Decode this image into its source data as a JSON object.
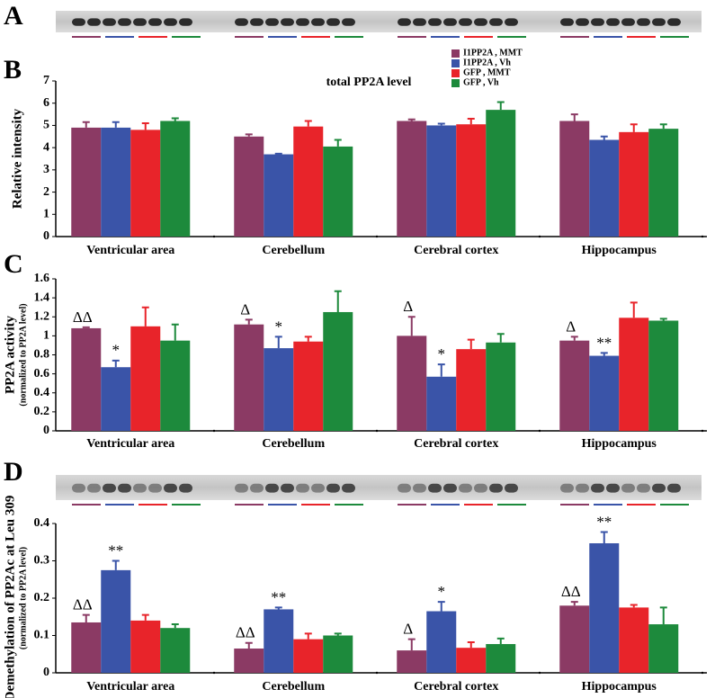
{
  "figure": {
    "panel_labels": [
      "A",
      "B",
      "C",
      "D"
    ]
  },
  "chart_data": [
    {
      "type": "bar",
      "title": "total PP2A level",
      "ylabel": "Relative intensity",
      "categories": [
        "Ventricular area",
        "Cerebellum",
        "Cerebral cortex",
        "Hippocampus"
      ],
      "ylim": [
        0,
        7
      ],
      "yticks": [
        0,
        1,
        2,
        3,
        4,
        5,
        6,
        7
      ],
      "series": [
        {
          "name": "I1PP2A , MMT",
          "color": "#8b3a64",
          "values": [
            4.9,
            4.5,
            5.2,
            5.2
          ],
          "errors": [
            0.25,
            0.1,
            0.07,
            0.3
          ]
        },
        {
          "name": "I1PP2A , Vh",
          "color": "#3a54a8",
          "values": [
            4.9,
            3.7,
            5.0,
            4.35
          ],
          "errors": [
            0.25,
            0.03,
            0.08,
            0.15
          ]
        },
        {
          "name": "GFP , MMT",
          "color": "#e8242a",
          "values": [
            4.8,
            4.95,
            5.05,
            4.7
          ],
          "errors": [
            0.3,
            0.25,
            0.25,
            0.35
          ]
        },
        {
          "name": "GFP , Vh",
          "color": "#1d8a3c",
          "values": [
            5.2,
            4.05,
            5.7,
            4.85
          ],
          "errors": [
            0.12,
            0.3,
            0.35,
            0.2
          ]
        }
      ]
    },
    {
      "type": "bar",
      "ylabel": "PP2A activity",
      "ylabel_note": "(normalized to PP2A level)",
      "categories": [
        "Ventricular area",
        "Cerebellum",
        "Cerebral cortex",
        "Hippocampus"
      ],
      "ylim": [
        0,
        1.6
      ],
      "yticks": [
        0,
        0.2,
        0.4,
        0.6,
        0.8,
        1,
        1.2,
        1.4,
        1.6
      ],
      "series": [
        {
          "color": "#8b3a64",
          "values": [
            1.08,
            1.12,
            1.0,
            0.95
          ],
          "errors": [
            0.01,
            0.05,
            0.2,
            0.04
          ],
          "significance": [
            "ΔΔ",
            "Δ",
            "Δ",
            "Δ"
          ]
        },
        {
          "color": "#3a54a8",
          "values": [
            0.67,
            0.87,
            0.57,
            0.79
          ],
          "errors": [
            0.07,
            0.12,
            0.13,
            0.03
          ],
          "significance": [
            "*",
            "*",
            "*",
            "**"
          ]
        },
        {
          "color": "#e8242a",
          "values": [
            1.1,
            0.94,
            0.86,
            1.19
          ],
          "errors": [
            0.2,
            0.05,
            0.1,
            0.16
          ]
        },
        {
          "color": "#1d8a3c",
          "values": [
            0.95,
            1.25,
            0.93,
            1.16
          ],
          "errors": [
            0.17,
            0.22,
            0.09,
            0.02
          ]
        }
      ]
    },
    {
      "type": "bar",
      "ylabel": "Demethylation of PP2Ac at Leu 309",
      "ylabel_note": "(normalized to PP2A level)",
      "categories": [
        "Ventricular area",
        "Cerebellum",
        "Cerebral cortex",
        "Hippocampus"
      ],
      "ylim": [
        0,
        0.4
      ],
      "yticks": [
        0,
        0.1,
        0.2,
        0.3,
        0.4
      ],
      "series": [
        {
          "color": "#8b3a64",
          "values": [
            0.135,
            0.065,
            0.06,
            0.18
          ],
          "errors": [
            0.02,
            0.015,
            0.03,
            0.01
          ],
          "significance": [
            "ΔΔ",
            "ΔΔ",
            "Δ",
            "ΔΔ"
          ]
        },
        {
          "color": "#3a54a8",
          "values": [
            0.275,
            0.17,
            0.165,
            0.347
          ],
          "errors": [
            0.025,
            0.005,
            0.025,
            0.03
          ],
          "significance": [
            "**",
            "**",
            "*",
            "**"
          ]
        },
        {
          "color": "#e8242a",
          "values": [
            0.14,
            0.09,
            0.067,
            0.175
          ],
          "errors": [
            0.015,
            0.015,
            0.015,
            0.007
          ]
        },
        {
          "color": "#1d8a3c",
          "values": [
            0.12,
            0.1,
            0.077,
            0.13
          ],
          "errors": [
            0.01,
            0.005,
            0.015,
            0.045
          ]
        }
      ]
    }
  ]
}
